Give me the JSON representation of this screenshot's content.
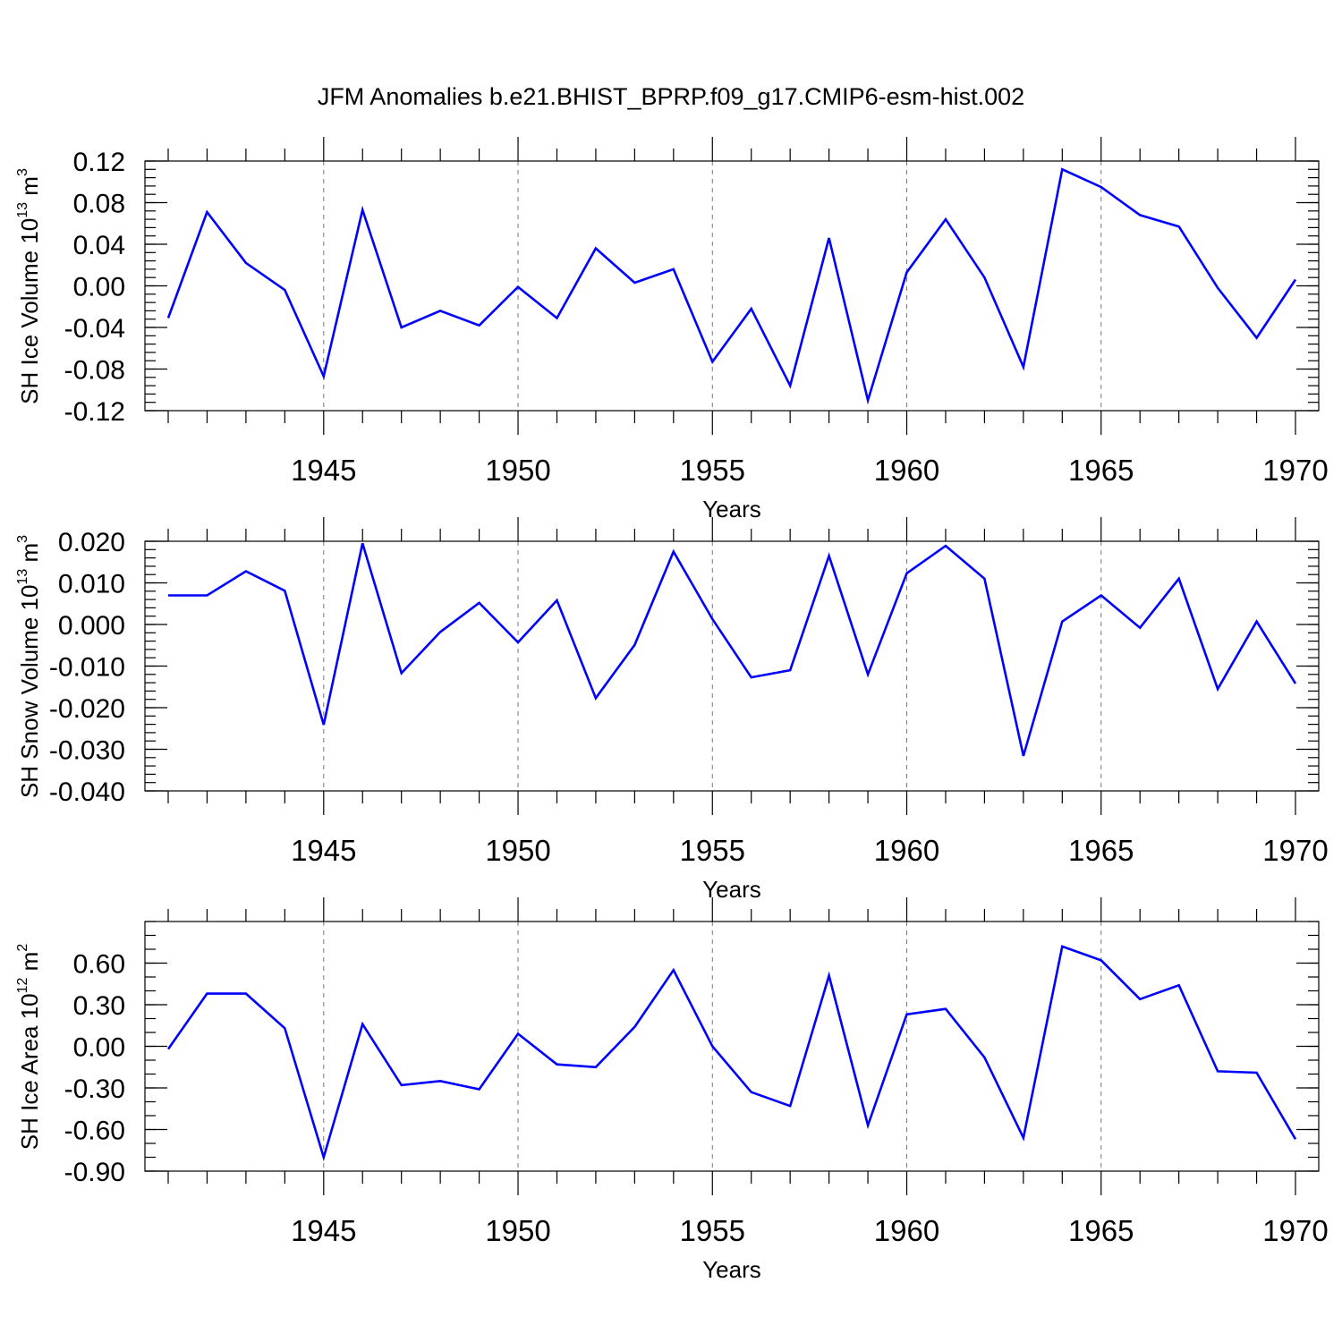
{
  "title": "JFM Anomalies b.e21.BHIST_BPRP.f09_g17.CMIP6-esm-hist.002",
  "chart_data": [
    {
      "type": "line",
      "ylabel_main": "SH Ice Volume 10",
      "ylabel_exp": "13",
      "ylabel_unit": " m",
      "ylabel_unit_exp": "3",
      "xlabel": "Years",
      "xlim": [
        1941,
        1970
      ],
      "ylim": [
        -0.12,
        0.12
      ],
      "yticks": [
        "0.12",
        "0.08",
        "0.04",
        "0.00",
        "-0.04",
        "-0.08",
        "-0.12"
      ],
      "ytick_values": [
        0.12,
        0.08,
        0.04,
        0.0,
        -0.04,
        -0.08,
        -0.12
      ],
      "yminor_step": 0.008,
      "xticks": [
        "1945",
        "1950",
        "1955",
        "1960",
        "1965",
        "1970"
      ],
      "xtick_values": [
        1945,
        1950,
        1955,
        1960,
        1965,
        1970
      ],
      "x": [
        1941,
        1942,
        1943,
        1944,
        1945,
        1946,
        1947,
        1948,
        1949,
        1950,
        1951,
        1952,
        1953,
        1954,
        1955,
        1956,
        1957,
        1958,
        1959,
        1960,
        1961,
        1962,
        1963,
        1964,
        1965,
        1966,
        1967,
        1968,
        1969,
        1970
      ],
      "values": [
        -0.031,
        0.071,
        0.022,
        -0.004,
        -0.087,
        0.073,
        -0.04,
        -0.024,
        -0.038,
        -0.001,
        -0.031,
        0.036,
        0.003,
        0.016,
        -0.073,
        -0.022,
        -0.096,
        0.046,
        -0.11,
        0.013,
        0.064,
        0.008,
        -0.078,
        0.112,
        0.095,
        0.068,
        0.057,
        -0.002,
        -0.05,
        0.006
      ]
    },
    {
      "type": "line",
      "ylabel_main": "SH Snow Volume 10",
      "ylabel_exp": "13",
      "ylabel_unit": " m",
      "ylabel_unit_exp": "3",
      "xlabel": "Years",
      "xlim": [
        1941,
        1970
      ],
      "ylim": [
        -0.04,
        0.02
      ],
      "yticks": [
        "0.020",
        "0.010",
        "0.000",
        "-0.010",
        "-0.020",
        "-0.030",
        "-0.040"
      ],
      "ytick_values": [
        0.02,
        0.01,
        0.0,
        -0.01,
        -0.02,
        -0.03,
        -0.04
      ],
      "yminor_step": 0.002,
      "xticks": [
        "1945",
        "1950",
        "1955",
        "1960",
        "1965",
        "1970"
      ],
      "xtick_values": [
        1945,
        1950,
        1955,
        1960,
        1965,
        1970
      ],
      "x": [
        1941,
        1942,
        1943,
        1944,
        1945,
        1946,
        1947,
        1948,
        1949,
        1950,
        1951,
        1952,
        1953,
        1954,
        1955,
        1956,
        1957,
        1958,
        1959,
        1960,
        1961,
        1962,
        1963,
        1964,
        1965,
        1966,
        1967,
        1968,
        1969,
        1970
      ],
      "values": [
        0.007,
        0.007,
        0.0128,
        0.0081,
        -0.0241,
        0.0195,
        -0.0117,
        -0.0018,
        0.0052,
        -0.0043,
        0.0058,
        -0.0177,
        -0.0049,
        0.0175,
        0.0013,
        -0.0127,
        -0.011,
        0.0165,
        -0.012,
        0.0123,
        0.0189,
        0.011,
        -0.0316,
        0.0007,
        0.007,
        -0.0008,
        0.011,
        -0.0155,
        0.0007,
        -0.0142
      ]
    },
    {
      "type": "line",
      "ylabel_main": "SH Ice Area 10",
      "ylabel_exp": "12",
      "ylabel_unit": " m",
      "ylabel_unit_exp": "2",
      "xlabel": "Years",
      "xlim": [
        1941,
        1970
      ],
      "ylim": [
        -0.9,
        0.9
      ],
      "yticks": [
        "0.60",
        "0.30",
        "0.00",
        "-0.30",
        "-0.60",
        "-0.90"
      ],
      "ytick_values": [
        0.6,
        0.3,
        0.0,
        -0.3,
        -0.6,
        -0.9
      ],
      "yminor_step": 0.1,
      "xticks": [
        "1945",
        "1950",
        "1955",
        "1960",
        "1965",
        "1970"
      ],
      "xtick_values": [
        1945,
        1950,
        1955,
        1960,
        1965,
        1970
      ],
      "x": [
        1941,
        1942,
        1943,
        1944,
        1945,
        1946,
        1947,
        1948,
        1949,
        1950,
        1951,
        1952,
        1953,
        1954,
        1955,
        1956,
        1957,
        1958,
        1959,
        1960,
        1961,
        1962,
        1963,
        1964,
        1965,
        1966,
        1967,
        1968,
        1969,
        1970
      ],
      "values": [
        -0.02,
        0.38,
        0.38,
        0.13,
        -0.8,
        0.16,
        -0.28,
        -0.25,
        -0.31,
        0.09,
        -0.13,
        -0.15,
        0.14,
        0.55,
        0.0,
        -0.33,
        -0.43,
        0.51,
        -0.57,
        0.23,
        0.27,
        -0.08,
        -0.66,
        0.72,
        0.62,
        0.34,
        0.44,
        -0.18,
        -0.19,
        -0.67
      ]
    }
  ]
}
